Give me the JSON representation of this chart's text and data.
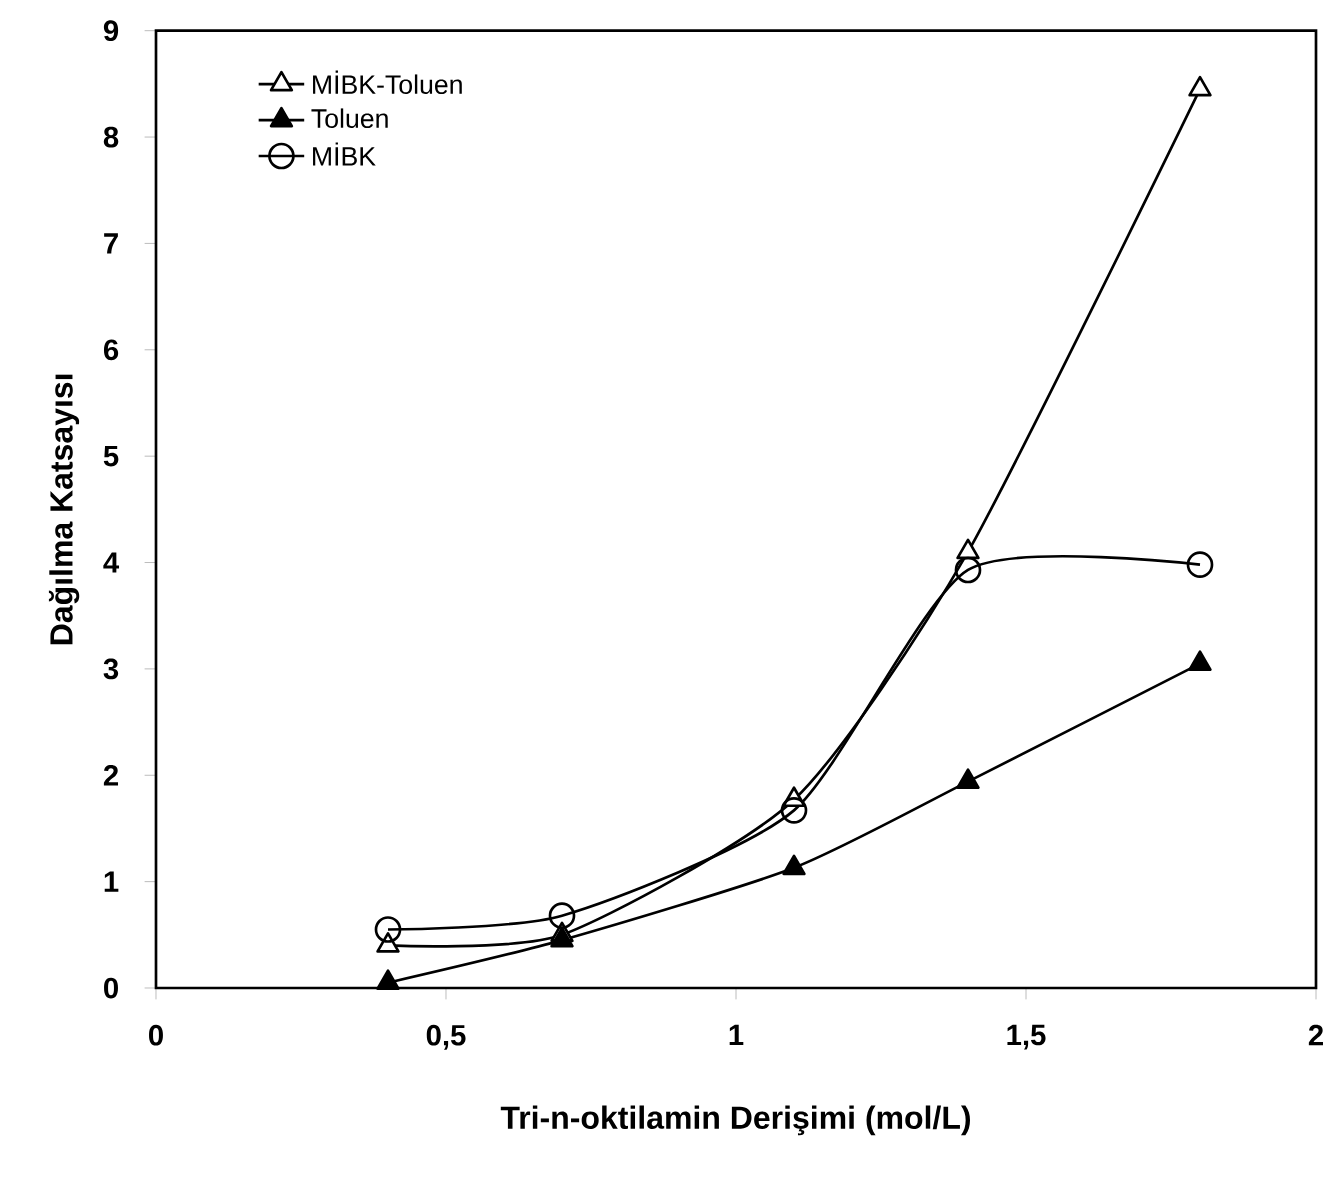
{
  "chart_data": {
    "type": "line",
    "xlabel": "Tri-n-oktilamin Derişimi (mol/L)",
    "ylabel": "Dağılma Katsayısı",
    "xlim": [
      0,
      2
    ],
    "xticks": [
      0,
      {
        "value": 0.5,
        "label": "0,5"
      },
      1,
      {
        "value": 1.5,
        "label": "1,5"
      },
      2
    ],
    "ylim": [
      0,
      9
    ],
    "yticks": [
      0,
      1,
      2,
      3,
      4,
      5,
      6,
      7,
      8,
      9
    ],
    "grid": false,
    "legend": "top left",
    "line_style": "solid",
    "series": [
      {
        "name": "MİBK-Toluen",
        "color": "#000000",
        "marker": "triangle",
        "x": [
          0.4,
          0.7,
          1.1,
          1.4,
          1.8
        ],
        "values": [
          0.4,
          0.5,
          1.77,
          4.1,
          8.45
        ]
      },
      {
        "name": "Toluen",
        "color": "#000000",
        "marker": "triangle",
        "x": [
          0.4,
          0.7,
          1.1,
          1.4,
          1.8
        ],
        "values": [
          0.05,
          0.45,
          1.13,
          1.94,
          3.05
        ]
      },
      {
        "name": "MİBK",
        "color": "#000000",
        "marker": "circle",
        "x": [
          0.4,
          0.7,
          1.1,
          1.4,
          1.8
        ],
        "values": [
          0.55,
          0.68,
          1.67,
          3.93,
          3.98
        ]
      }
    ]
  }
}
